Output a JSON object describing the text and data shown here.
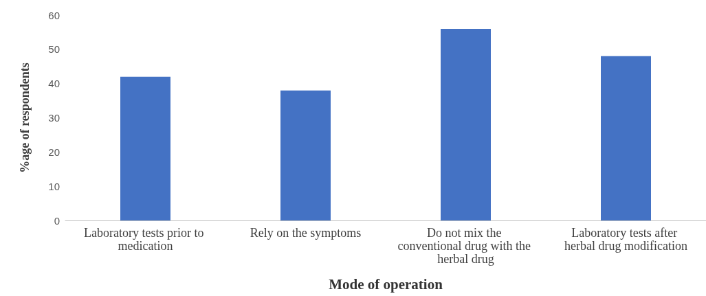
{
  "chart_data": {
    "type": "bar",
    "xlabel": "Mode of operation",
    "ylabel": "%age of respondents",
    "categories": [
      "Laboratory tests prior to medication",
      "Rely on the symptoms",
      "Do not mix the conventional drug with the herbal drug",
      "Laboratory tests after herbal drug modification"
    ],
    "values": [
      42,
      38,
      56,
      48
    ],
    "color": "#4472c4",
    "ylim": [
      0,
      60
    ],
    "yticks": [
      0,
      10,
      20,
      30,
      40,
      50,
      60
    ],
    "grid": false
  }
}
